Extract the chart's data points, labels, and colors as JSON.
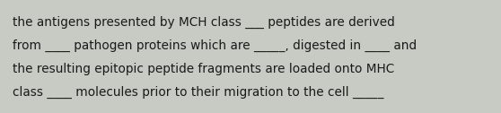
{
  "lines": [
    "the antigens presented by MCH class ___ peptides are derived",
    "from ____ pathogen proteins which are _____, digested in ____ and",
    "the resulting epitopic peptide fragments are loaded onto MHC",
    "class ____ molecules prior to their migration to the cell _____"
  ],
  "background_color": "#c8cac4",
  "text_color": "#1a1a1a",
  "font_size": 9.8,
  "fig_width": 5.58,
  "fig_height": 1.26,
  "dpi": 100
}
